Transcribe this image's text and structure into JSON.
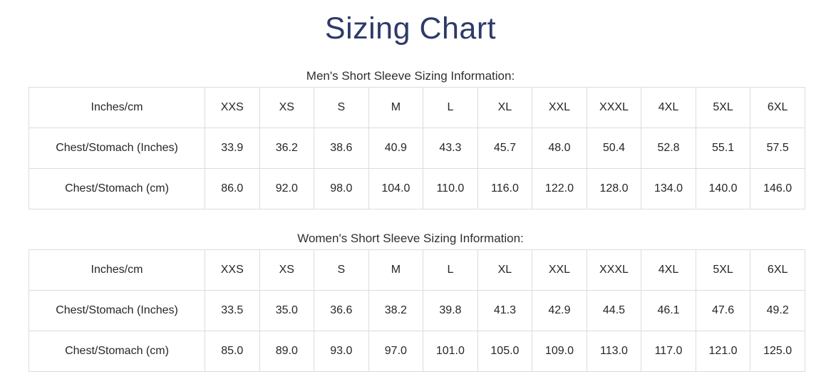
{
  "page": {
    "title": "Sizing Chart"
  },
  "theme": {
    "title_color": "#2e3a67",
    "border_color": "#dcdcdc",
    "text_color": "#262626"
  },
  "tables": [
    {
      "caption": "Men's Short Sleeve Sizing Information:",
      "header": [
        "Inches/cm",
        "XXS",
        "XS",
        "S",
        "M",
        "L",
        "XL",
        "XXL",
        "XXXL",
        "4XL",
        "5XL",
        "6XL"
      ],
      "rows": [
        {
          "label": "Chest/Stomach (Inches)",
          "values": [
            "33.9",
            "36.2",
            "38.6",
            "40.9",
            "43.3",
            "45.7",
            "48.0",
            "50.4",
            "52.8",
            "55.1",
            "57.5"
          ]
        },
        {
          "label": "Chest/Stomach (cm)",
          "values": [
            "86.0",
            "92.0",
            "98.0",
            "104.0",
            "110.0",
            "116.0",
            "122.0",
            "128.0",
            "134.0",
            "140.0",
            "146.0"
          ]
        }
      ]
    },
    {
      "caption": "Women's Short Sleeve Sizing Information:",
      "header": [
        "Inches/cm",
        "XXS",
        "XS",
        "S",
        "M",
        "L",
        "XL",
        "XXL",
        "XXXL",
        "4XL",
        "5XL",
        "6XL"
      ],
      "rows": [
        {
          "label": "Chest/Stomach (Inches)",
          "values": [
            "33.5",
            "35.0",
            "36.6",
            "38.2",
            "39.8",
            "41.3",
            "42.9",
            "44.5",
            "46.1",
            "47.6",
            "49.2"
          ]
        },
        {
          "label": "Chest/Stomach (cm)",
          "values": [
            "85.0",
            "89.0",
            "93.0",
            "97.0",
            "101.0",
            "105.0",
            "109.0",
            "113.0",
            "117.0",
            "121.0",
            "125.0"
          ]
        }
      ]
    }
  ],
  "chart_data": [
    {
      "type": "table",
      "title": "Men's Short Sleeve Sizing Information:",
      "columns": [
        "Inches/cm",
        "XXS",
        "XS",
        "S",
        "M",
        "L",
        "XL",
        "XXL",
        "XXXL",
        "4XL",
        "5XL",
        "6XL"
      ],
      "rows": [
        [
          "Chest/Stomach (Inches)",
          33.9,
          36.2,
          38.6,
          40.9,
          43.3,
          45.7,
          48.0,
          50.4,
          52.8,
          55.1,
          57.5
        ],
        [
          "Chest/Stomach (cm)",
          86.0,
          92.0,
          98.0,
          104.0,
          110.0,
          116.0,
          122.0,
          128.0,
          134.0,
          140.0,
          146.0
        ]
      ]
    },
    {
      "type": "table",
      "title": "Women's Short Sleeve Sizing Information:",
      "columns": [
        "Inches/cm",
        "XXS",
        "XS",
        "S",
        "M",
        "L",
        "XL",
        "XXL",
        "XXXL",
        "4XL",
        "5XL",
        "6XL"
      ],
      "rows": [
        [
          "Chest/Stomach (Inches)",
          33.5,
          35.0,
          36.6,
          38.2,
          39.8,
          41.3,
          42.9,
          44.5,
          46.1,
          47.6,
          49.2
        ],
        [
          "Chest/Stomach (cm)",
          85.0,
          89.0,
          93.0,
          97.0,
          101.0,
          105.0,
          109.0,
          113.0,
          117.0,
          121.0,
          125.0
        ]
      ]
    }
  ]
}
